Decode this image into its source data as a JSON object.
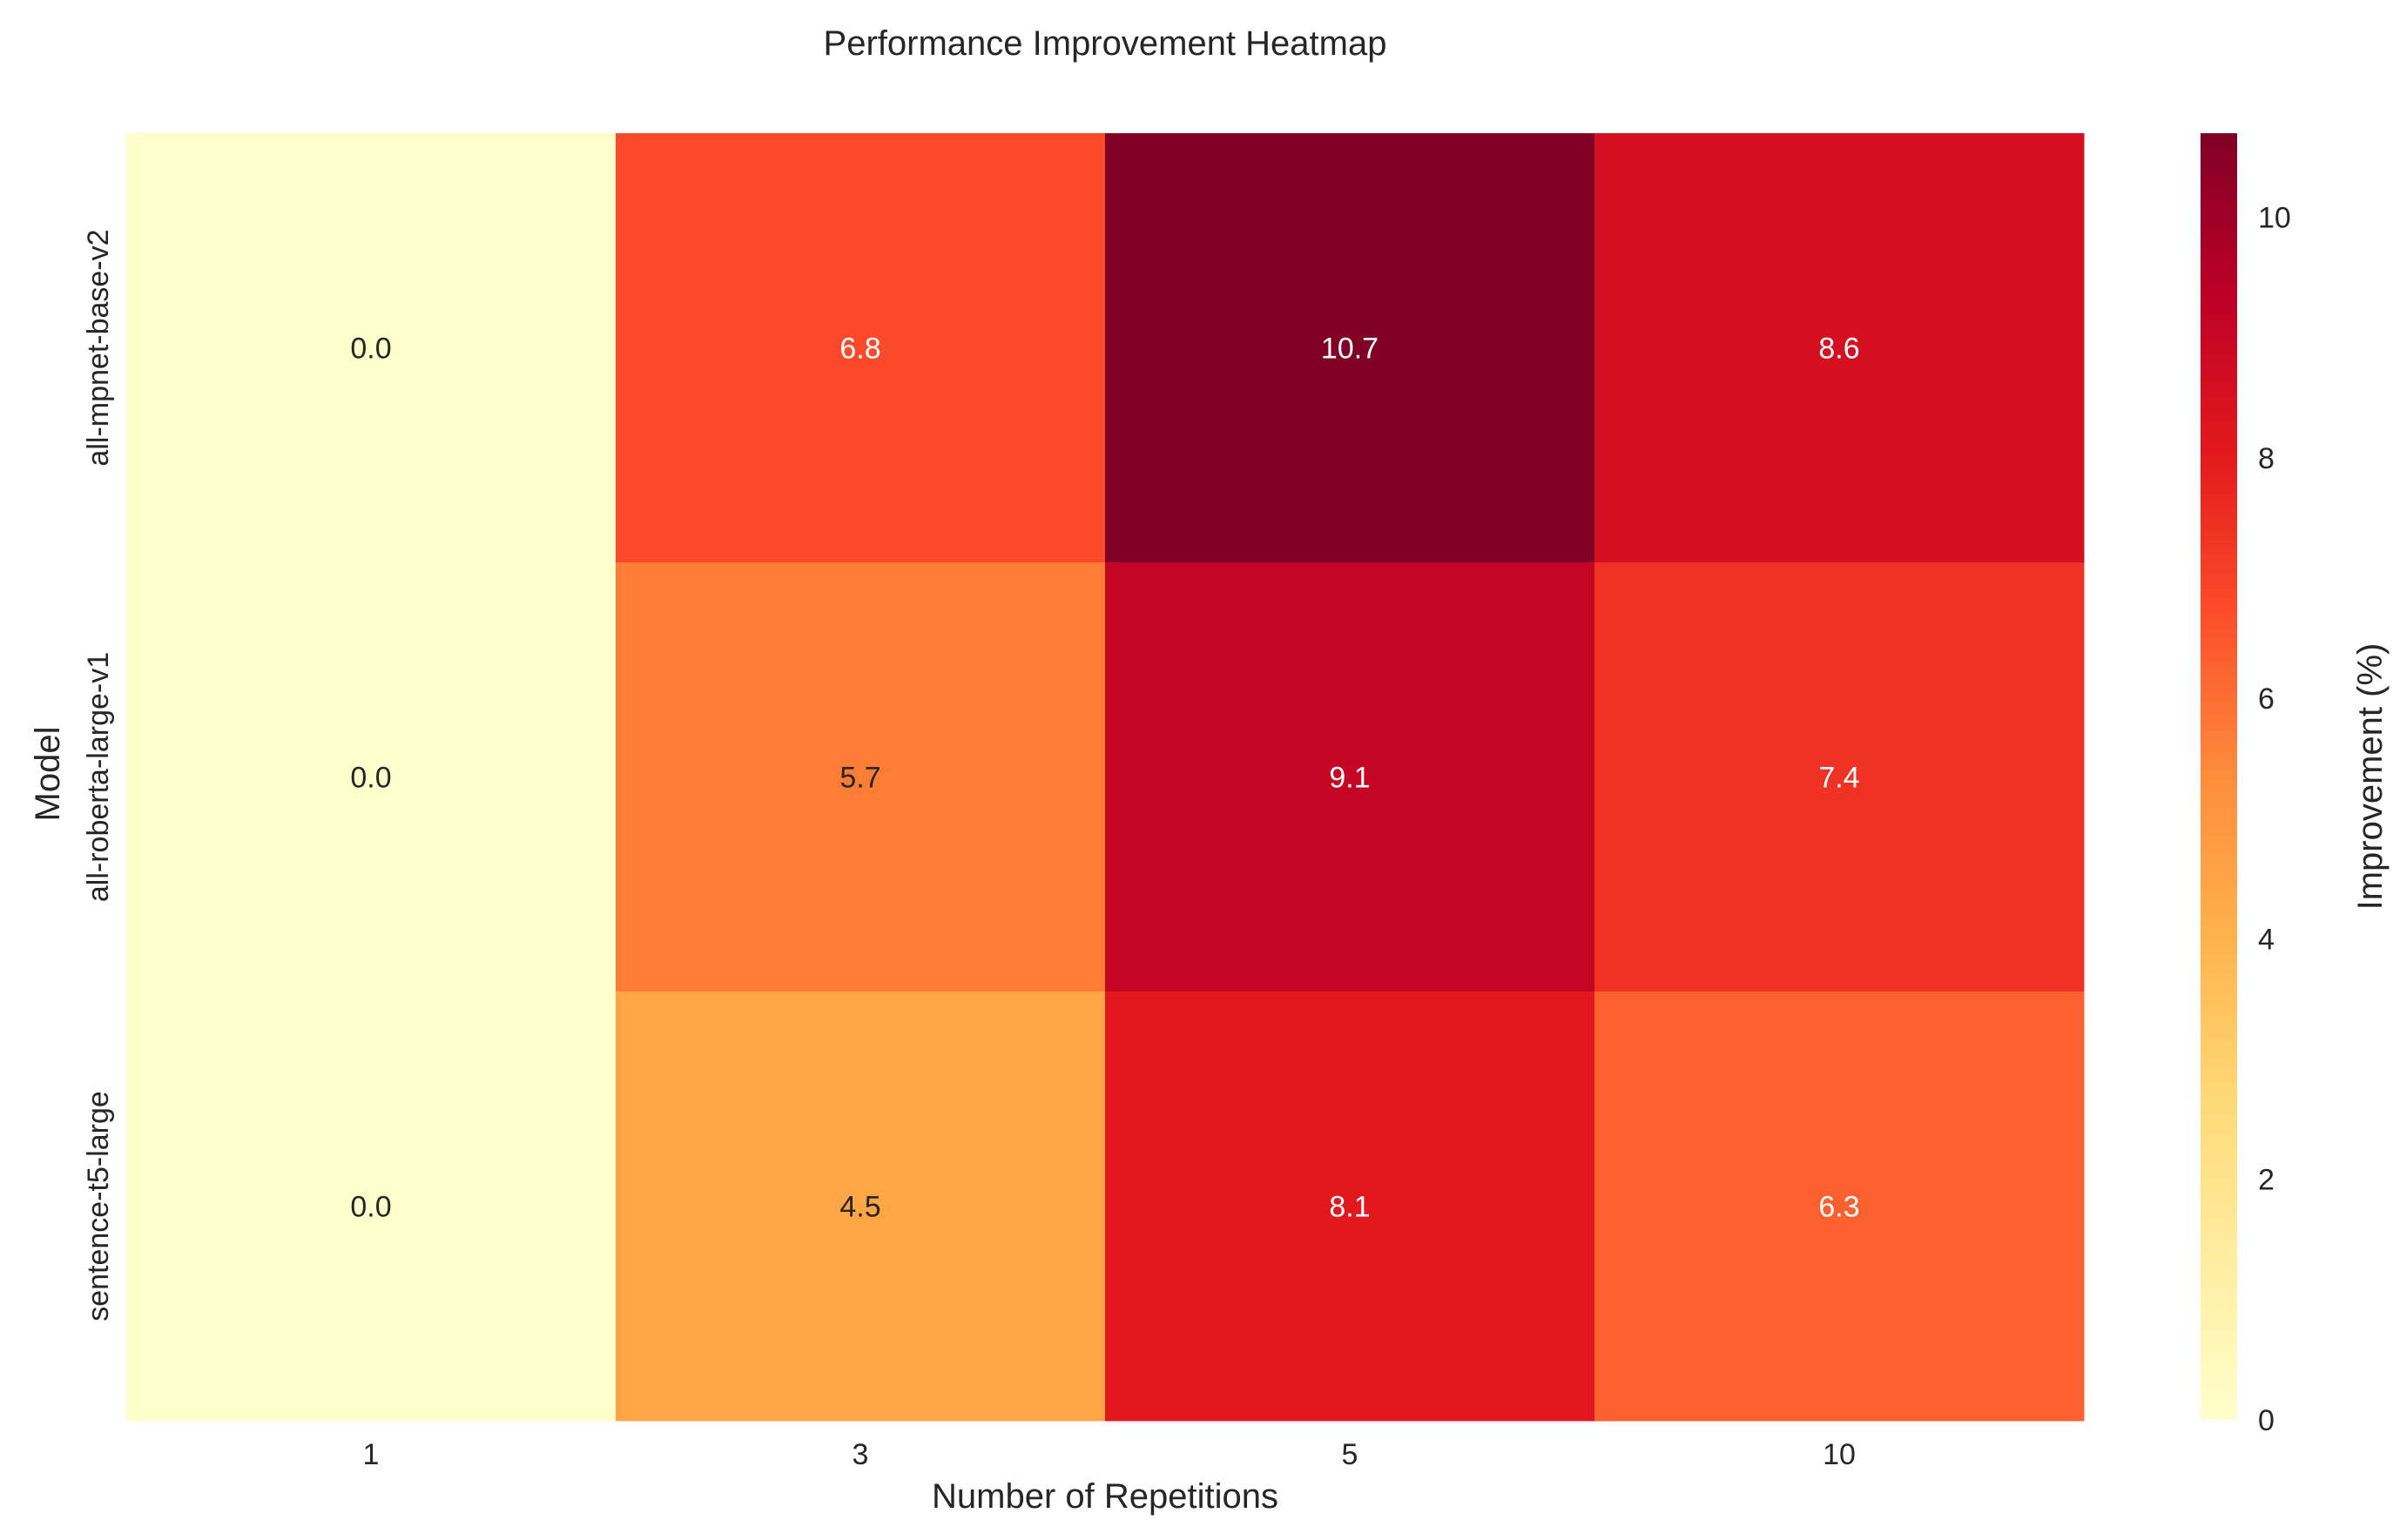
{
  "chart_data": {
    "type": "heatmap",
    "title": "Performance Improvement Heatmap",
    "xlabel": "Number of Repetitions",
    "ylabel": "Model",
    "x_categories": [
      "1",
      "3",
      "5",
      "10"
    ],
    "y_categories": [
      "all-mpnet-base-v2",
      "all-roberta-large-v1",
      "sentence-t5-large"
    ],
    "values": [
      [
        0.0,
        6.8,
        10.7,
        8.6
      ],
      [
        0.0,
        5.7,
        9.1,
        7.4
      ],
      [
        0.0,
        4.5,
        8.1,
        6.3
      ]
    ],
    "value_labels": [
      [
        "0.0",
        "6.8",
        "10.7",
        "8.6"
      ],
      [
        "0.0",
        "5.7",
        "9.1",
        "7.4"
      ],
      [
        "0.0",
        "4.5",
        "8.1",
        "6.3"
      ]
    ],
    "colormap": "YlOrRd",
    "colorbar": {
      "label": "Improvement (%)",
      "range": [
        0,
        10.7
      ],
      "ticks": [
        0,
        2,
        4,
        6,
        8,
        10
      ]
    },
    "colors": {
      "background": "#ffffff",
      "text_dark": "#262626",
      "text_light": "#ffffff"
    }
  }
}
